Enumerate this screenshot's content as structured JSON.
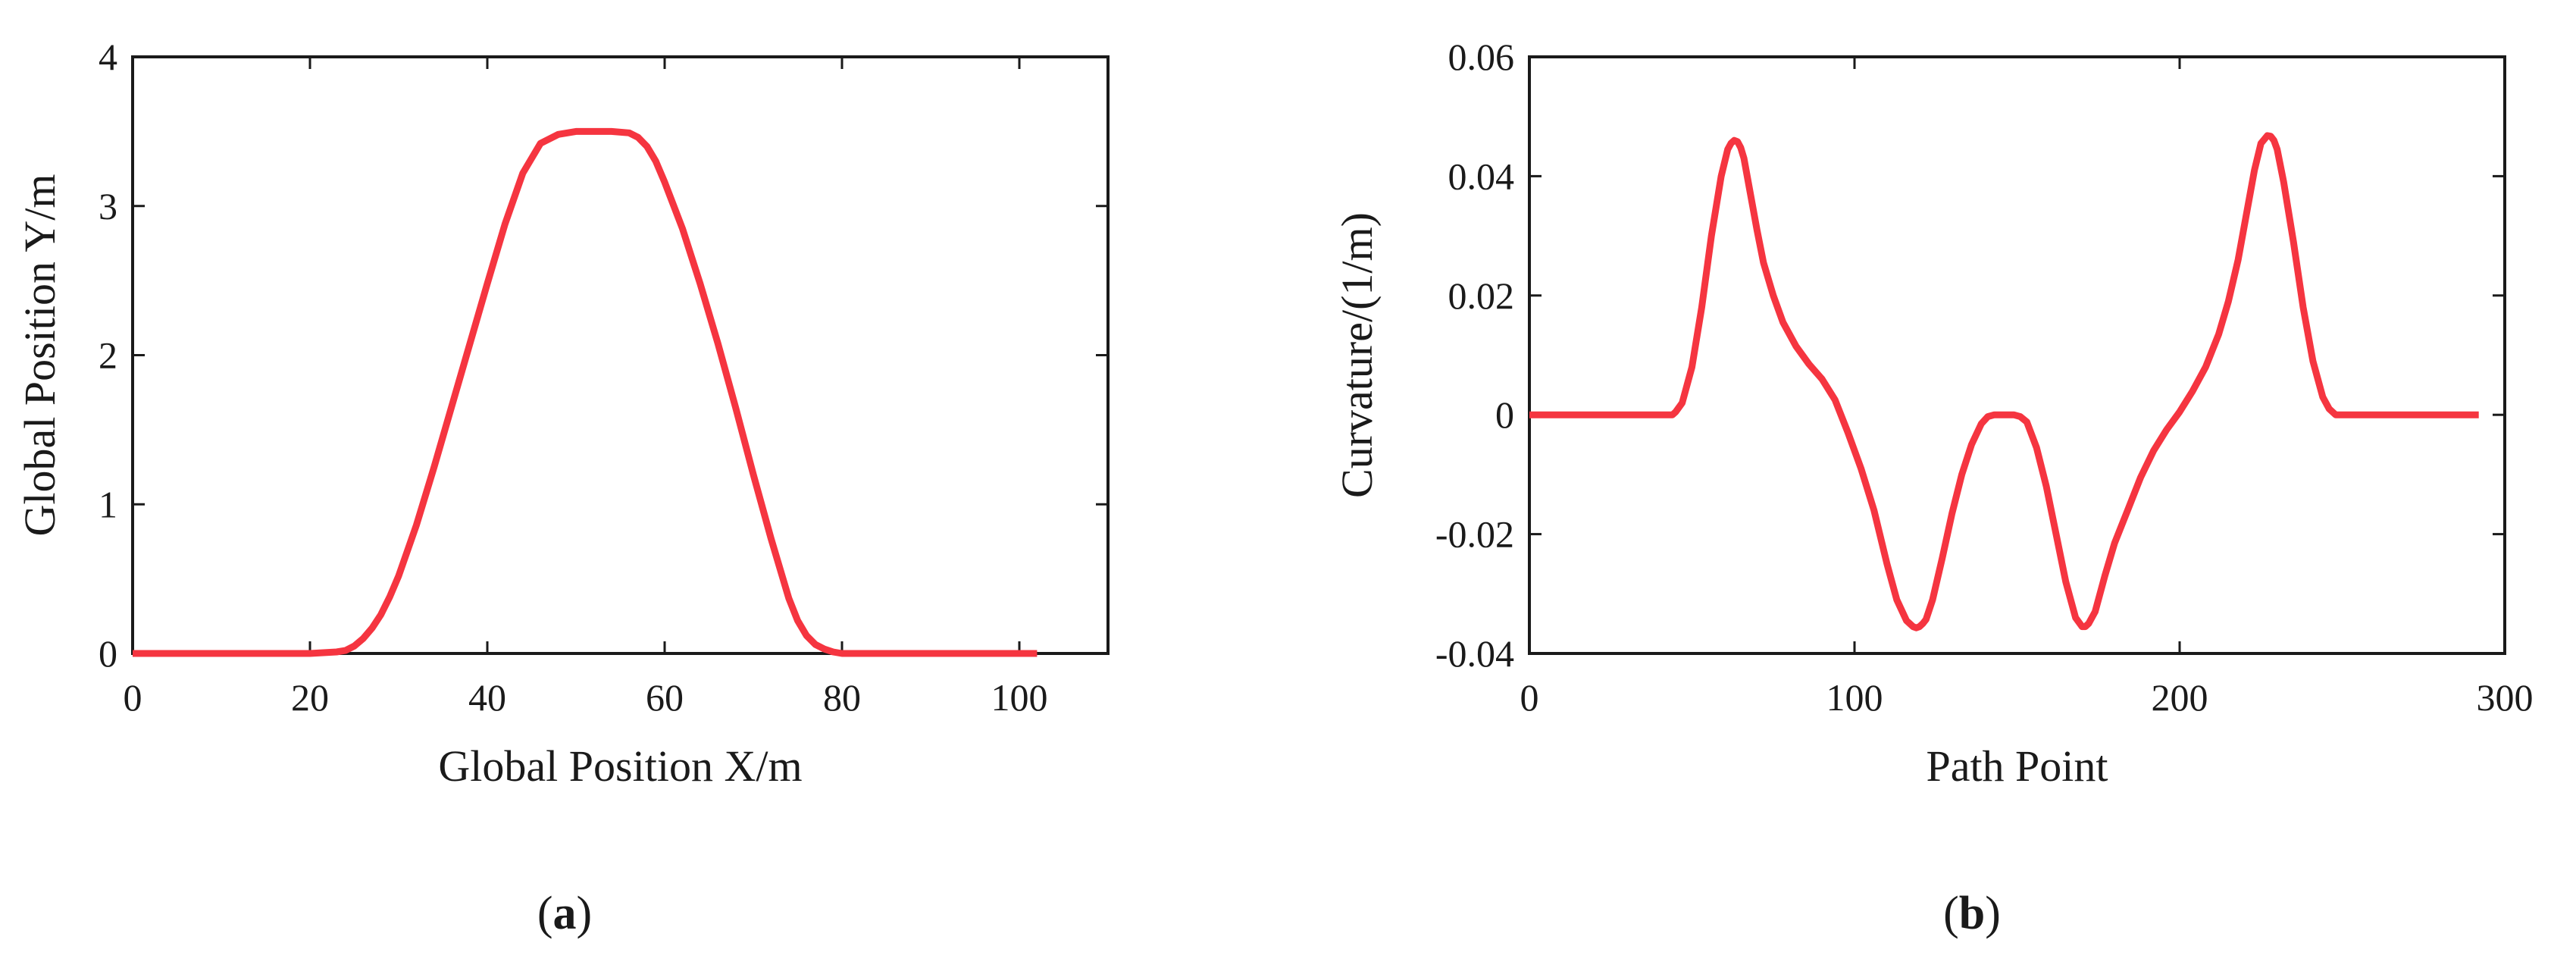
{
  "colors": {
    "series": "#f53540",
    "axis": "#1a1a1a",
    "background": "#ffffff"
  },
  "chart_data": [
    {
      "type": "line",
      "panel_label": {
        "open": "(",
        "letter": "a",
        "close": ")"
      },
      "xlabel": "Global Position X/m",
      "ylabel": "Global Position Y/m",
      "xlim": [
        0,
        110
      ],
      "ylim": [
        0,
        4
      ],
      "xticks": [
        0,
        20,
        40,
        60,
        80,
        100
      ],
      "yticks": [
        0,
        1,
        2,
        3,
        4
      ],
      "grid": false,
      "legend": "none",
      "series": [
        {
          "x": [
            0,
            10,
            20,
            23,
            24,
            25,
            26,
            27,
            28,
            29,
            30,
            32,
            34,
            36,
            38,
            40,
            42,
            44,
            46,
            48,
            50,
            52,
            54,
            56,
            57,
            58,
            59,
            60,
            62,
            64,
            66,
            68,
            70,
            72,
            74,
            75,
            76,
            77,
            78,
            79,
            80,
            90,
            100,
            102
          ],
          "y": [
            0,
            0,
            0,
            0.01,
            0.02,
            0.05,
            0.1,
            0.17,
            0.26,
            0.38,
            0.52,
            0.86,
            1.25,
            1.66,
            2.07,
            2.48,
            2.88,
            3.22,
            3.42,
            3.48,
            3.5,
            3.5,
            3.5,
            3.49,
            3.46,
            3.4,
            3.3,
            3.16,
            2.85,
            2.48,
            2.08,
            1.65,
            1.2,
            0.77,
            0.37,
            0.22,
            0.12,
            0.06,
            0.03,
            0.01,
            0,
            0,
            0,
            0
          ]
        }
      ]
    },
    {
      "type": "line",
      "panel_label": {
        "open": "(",
        "letter": "b",
        "close": ")"
      },
      "xlabel": "Path Point",
      "ylabel": "Curvature/(1/m)",
      "xlim": [
        0,
        300
      ],
      "ylim": [
        -0.04,
        0.06
      ],
      "xticks": [
        0,
        100,
        200,
        300
      ],
      "yticks": [
        -0.04,
        -0.02,
        0,
        0.02,
        0.04,
        0.06
      ],
      "ytick_labels": [
        "-0.04",
        "-0.02",
        "0",
        "0.02",
        "0.04",
        "0.06"
      ],
      "grid": false,
      "legend": "none",
      "series": [
        {
          "x": [
            0,
            20,
            44,
            45,
            47,
            50,
            53,
            56,
            59,
            61,
            62,
            63,
            64,
            65,
            66,
            68,
            70,
            72,
            75,
            78,
            82,
            86,
            90,
            94,
            98,
            102,
            106,
            110,
            113,
            116,
            118,
            119,
            120,
            121,
            122,
            124,
            127,
            130,
            133,
            136,
            139,
            141,
            143,
            145,
            147,
            149,
            151,
            153,
            156,
            159,
            162,
            165,
            168,
            170,
            171,
            172,
            174,
            177,
            180,
            184,
            188,
            192,
            196,
            200,
            204,
            208,
            212,
            215,
            218,
            221,
            223,
            225,
            227,
            228,
            229,
            230,
            232,
            235,
            238,
            241,
            244,
            246,
            248,
            270,
            292
          ],
          "y": [
            0,
            0,
            0,
            0.0005,
            0.002,
            0.008,
            0.018,
            0.03,
            0.04,
            0.0445,
            0.0455,
            0.046,
            0.0458,
            0.0448,
            0.043,
            0.037,
            0.031,
            0.0255,
            0.02,
            0.0155,
            0.0115,
            0.0085,
            0.006,
            0.0025,
            -0.003,
            -0.009,
            -0.016,
            -0.025,
            -0.031,
            -0.0345,
            -0.0355,
            -0.0357,
            -0.0355,
            -0.035,
            -0.0343,
            -0.031,
            -0.024,
            -0.0165,
            -0.01,
            -0.005,
            -0.0015,
            -0.0003,
            0,
            0,
            0,
            0,
            -0.0003,
            -0.0012,
            -0.0055,
            -0.012,
            -0.02,
            -0.028,
            -0.034,
            -0.0355,
            -0.0355,
            -0.035,
            -0.033,
            -0.027,
            -0.0215,
            -0.016,
            -0.0105,
            -0.006,
            -0.0025,
            0.0005,
            0.004,
            0.008,
            0.0135,
            0.019,
            0.026,
            0.035,
            0.041,
            0.0455,
            0.0468,
            0.0467,
            0.046,
            0.0445,
            0.039,
            0.029,
            0.018,
            0.009,
            0.003,
            0.001,
            0,
            0,
            0
          ]
        }
      ]
    }
  ]
}
